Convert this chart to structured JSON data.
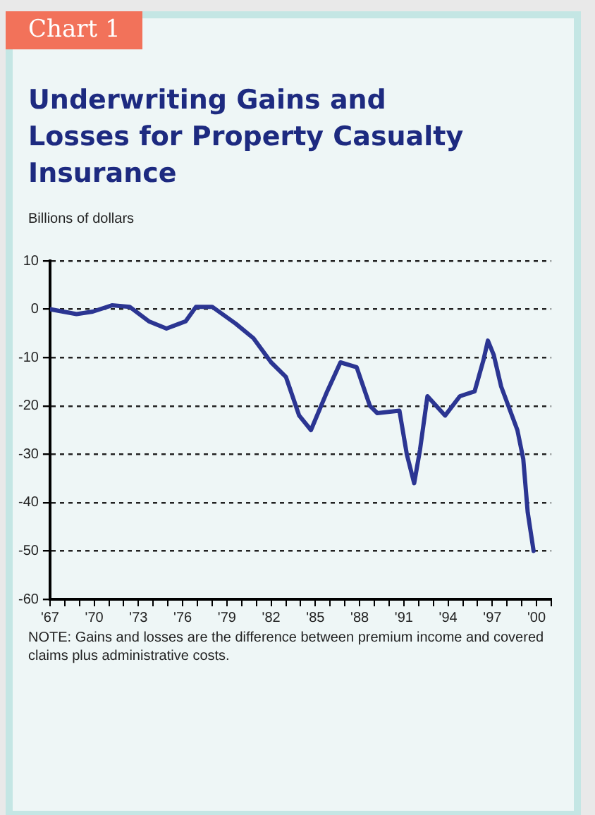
{
  "chart_data": {
    "type": "line",
    "title": "Underwriting Gains and Losses for Property Casualty Insurance",
    "ylabel": "Billions of dollars",
    "annotations": [
      "Chart 1",
      "NOTE: Gains and losses are the difference between premium income and covered claims plus administrative costs."
    ],
    "series": [
      {
        "color": "#2b3592",
        "x": [
          1967,
          1968.8,
          1969.9,
          1971.2,
          1972.4,
          1973.7,
          1974.9,
          1976.2,
          1976.9,
          1978,
          1979.6,
          1980.8,
          1982,
          1983,
          1983.9,
          1984.7,
          1985.8,
          1986.7,
          1987.8,
          1988.7,
          1989.2,
          1990.7,
          1991.2,
          1991.7,
          1992.1,
          1992.6,
          1993.8,
          1994.8,
          1995.8,
          1996.4,
          1996.7,
          1997.1,
          1997.6,
          1998.7,
          1999.1,
          1999.4,
          1999.8
        ],
        "values": [
          0,
          -1,
          -0.5,
          0.8,
          0.5,
          -2.5,
          -4,
          -2.5,
          0.5,
          0.5,
          -3,
          -6,
          -11,
          -14,
          -22,
          -25,
          -17,
          -11,
          -12,
          -20,
          -21.5,
          -21,
          -30,
          -36,
          -29,
          -18,
          -22,
          -18,
          -17,
          -10.5,
          -6.5,
          -9.5,
          -16,
          -25,
          -31,
          -42,
          -50
        ]
      }
    ],
    "xlim": [
      1967,
      2001
    ],
    "xticks": [
      {
        "value": 1967,
        "label": "'67"
      },
      {
        "value": 1968,
        "label": null
      },
      {
        "value": 1969,
        "label": null
      },
      {
        "value": 1970,
        "label": "'70"
      },
      {
        "value": 1971,
        "label": null
      },
      {
        "value": 1972,
        "label": null
      },
      {
        "value": 1973,
        "label": "'73"
      },
      {
        "value": 1974,
        "label": null
      },
      {
        "value": 1975,
        "label": null
      },
      {
        "value": 1976,
        "label": "'76"
      },
      {
        "value": 1977,
        "label": null
      },
      {
        "value": 1978,
        "label": null
      },
      {
        "value": 1979,
        "label": "'79"
      },
      {
        "value": 1980,
        "label": null
      },
      {
        "value": 1981,
        "label": null
      },
      {
        "value": 1982,
        "label": "'82"
      },
      {
        "value": 1983,
        "label": null
      },
      {
        "value": 1984,
        "label": null
      },
      {
        "value": 1985,
        "label": "'85"
      },
      {
        "value": 1986,
        "label": null
      },
      {
        "value": 1987,
        "label": null
      },
      {
        "value": 1988,
        "label": "'88"
      },
      {
        "value": 1989,
        "label": null
      },
      {
        "value": 1990,
        "label": null
      },
      {
        "value": 1991,
        "label": "'91"
      },
      {
        "value": 1992,
        "label": null
      },
      {
        "value": 1993,
        "label": null
      },
      {
        "value": 1994,
        "label": "'94"
      },
      {
        "value": 1995,
        "label": null
      },
      {
        "value": 1996,
        "label": null
      },
      {
        "value": 1997,
        "label": "'97"
      },
      {
        "value": 1998,
        "label": null
      },
      {
        "value": 1999,
        "label": null
      },
      {
        "value": 2000,
        "label": "'00"
      },
      {
        "value": 2001,
        "label": null
      }
    ],
    "ylim": [
      -60,
      10
    ],
    "yticks": [
      -60,
      -50,
      -40,
      -30,
      -20,
      -10,
      0,
      10
    ],
    "grid": "y",
    "legend": false,
    "marker": "none",
    "line_style": "solid"
  }
}
